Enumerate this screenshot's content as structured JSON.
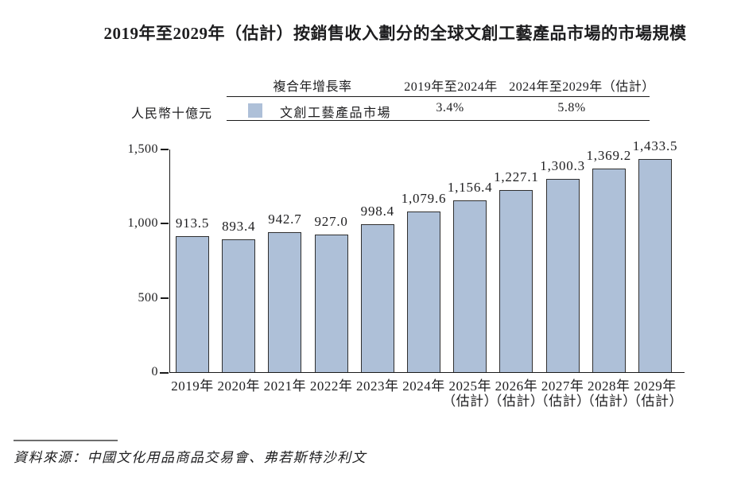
{
  "page": {
    "title": "2019年至2029年（估計）按銷售收入劃分的全球文創工藝產品市場的市場規模",
    "source": "資料來源：中國文化用品商品交易會、弗若斯特沙利文"
  },
  "legend": {
    "unit_label": "人民幣十億元",
    "cagr_header": "複合年增長率",
    "period_1": "2019年至2024年",
    "period_2": "2024年至2029年（估計）",
    "series_label": "文創工藝產品市場",
    "cagr_1": "3.4%",
    "cagr_2": "5.8%",
    "swatch_color": "#aec0d8"
  },
  "chart_data": {
    "type": "bar",
    "title": "2019年至2029年（估計）按銷售收入劃分的全球文創工藝產品市場的市場規模",
    "ylabel": "人民幣十億元",
    "ylim": [
      0,
      1500
    ],
    "yticks": [
      0,
      500,
      1000,
      1500
    ],
    "ytick_labels": [
      "0",
      "500",
      "1,000",
      "1,500"
    ],
    "grid": false,
    "legend_position": "top",
    "categories": [
      "2019年",
      "2020年",
      "2021年",
      "2022年",
      "2023年",
      "2024年",
      "2025年",
      "2026年",
      "2027年",
      "2028年",
      "2029年"
    ],
    "category_notes": [
      "",
      "",
      "",
      "",
      "",
      "",
      "（估計）",
      "（估計）",
      "（估計）",
      "（估計）",
      "（估計）"
    ],
    "series": [
      {
        "name": "文創工藝產品市場",
        "values": [
          913.5,
          893.4,
          942.7,
          927.0,
          998.4,
          1079.6,
          1156.4,
          1227.1,
          1300.3,
          1369.2,
          1433.5
        ]
      }
    ],
    "value_labels": [
      "913.5",
      "893.4",
      "942.7",
      "927.0",
      "998.4",
      "1,079.6",
      "1,156.4",
      "1,227.1",
      "1,300.3",
      "1,369.2",
      "1,433.5"
    ],
    "bar_color": "#aec0d8",
    "bar_border_color": "#2f2f2f"
  }
}
